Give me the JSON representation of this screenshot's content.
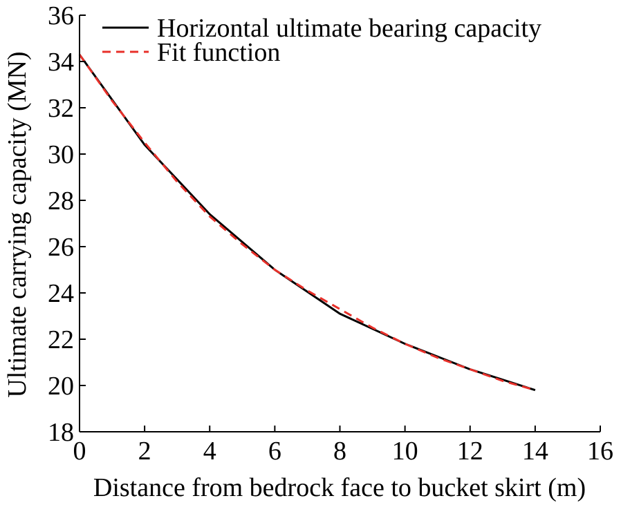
{
  "chart_data": {
    "type": "line",
    "title": "",
    "xlabel": "Distance from bedrock face to bucket skirt (m)",
    "ylabel": "Ultimate carrying capacity (MN)",
    "xlim": [
      0,
      16
    ],
    "ylim": [
      18,
      36
    ],
    "xticks": [
      0,
      2,
      4,
      6,
      8,
      10,
      12,
      14,
      16
    ],
    "yticks": [
      18,
      20,
      22,
      24,
      26,
      28,
      30,
      32,
      34,
      36
    ],
    "grid": false,
    "legend_position": "top",
    "series": [
      {
        "name": "Horizontal ultimate bearing capacity",
        "color": "#000000",
        "dash": "solid",
        "x": [
          0,
          2,
          4,
          6,
          8,
          10,
          12,
          14
        ],
        "y": [
          34.3,
          30.4,
          27.4,
          25.0,
          23.1,
          21.8,
          20.7,
          19.8
        ]
      },
      {
        "name": "Fit function",
        "color": "#e8302a",
        "dash": "dashed",
        "x": [
          0,
          1,
          2,
          3,
          4,
          5,
          6,
          7,
          8,
          9,
          10,
          11,
          12,
          13,
          14
        ],
        "y": [
          34.3,
          32.3,
          30.5,
          28.8,
          27.3,
          26.1,
          25.0,
          24.1,
          23.3,
          22.5,
          21.8,
          21.2,
          20.7,
          20.2,
          19.8
        ]
      }
    ]
  }
}
